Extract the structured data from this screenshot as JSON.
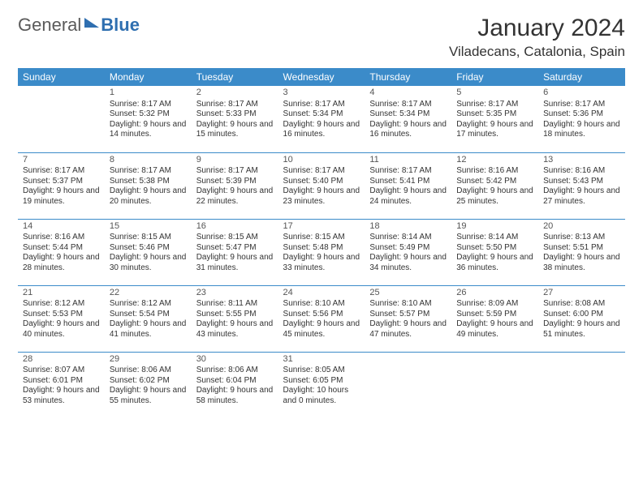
{
  "logo": {
    "general": "General",
    "blue": "Blue"
  },
  "title": "January 2024",
  "location": "Viladecans, Catalonia, Spain",
  "colors": {
    "header_bg": "#3b8bc9",
    "header_text": "#ffffff",
    "rule": "#3b8bc9",
    "logo_blue": "#2f6fb0",
    "text": "#333333"
  },
  "day_names": [
    "Sunday",
    "Monday",
    "Tuesday",
    "Wednesday",
    "Thursday",
    "Friday",
    "Saturday"
  ],
  "weeks": [
    [
      null,
      {
        "n": "1",
        "sr": "Sunrise: 8:17 AM",
        "ss": "Sunset: 5:32 PM",
        "dl": "Daylight: 9 hours and 14 minutes."
      },
      {
        "n": "2",
        "sr": "Sunrise: 8:17 AM",
        "ss": "Sunset: 5:33 PM",
        "dl": "Daylight: 9 hours and 15 minutes."
      },
      {
        "n": "3",
        "sr": "Sunrise: 8:17 AM",
        "ss": "Sunset: 5:34 PM",
        "dl": "Daylight: 9 hours and 16 minutes."
      },
      {
        "n": "4",
        "sr": "Sunrise: 8:17 AM",
        "ss": "Sunset: 5:34 PM",
        "dl": "Daylight: 9 hours and 16 minutes."
      },
      {
        "n": "5",
        "sr": "Sunrise: 8:17 AM",
        "ss": "Sunset: 5:35 PM",
        "dl": "Daylight: 9 hours and 17 minutes."
      },
      {
        "n": "6",
        "sr": "Sunrise: 8:17 AM",
        "ss": "Sunset: 5:36 PM",
        "dl": "Daylight: 9 hours and 18 minutes."
      }
    ],
    [
      {
        "n": "7",
        "sr": "Sunrise: 8:17 AM",
        "ss": "Sunset: 5:37 PM",
        "dl": "Daylight: 9 hours and 19 minutes."
      },
      {
        "n": "8",
        "sr": "Sunrise: 8:17 AM",
        "ss": "Sunset: 5:38 PM",
        "dl": "Daylight: 9 hours and 20 minutes."
      },
      {
        "n": "9",
        "sr": "Sunrise: 8:17 AM",
        "ss": "Sunset: 5:39 PM",
        "dl": "Daylight: 9 hours and 22 minutes."
      },
      {
        "n": "10",
        "sr": "Sunrise: 8:17 AM",
        "ss": "Sunset: 5:40 PM",
        "dl": "Daylight: 9 hours and 23 minutes."
      },
      {
        "n": "11",
        "sr": "Sunrise: 8:17 AM",
        "ss": "Sunset: 5:41 PM",
        "dl": "Daylight: 9 hours and 24 minutes."
      },
      {
        "n": "12",
        "sr": "Sunrise: 8:16 AM",
        "ss": "Sunset: 5:42 PM",
        "dl": "Daylight: 9 hours and 25 minutes."
      },
      {
        "n": "13",
        "sr": "Sunrise: 8:16 AM",
        "ss": "Sunset: 5:43 PM",
        "dl": "Daylight: 9 hours and 27 minutes."
      }
    ],
    [
      {
        "n": "14",
        "sr": "Sunrise: 8:16 AM",
        "ss": "Sunset: 5:44 PM",
        "dl": "Daylight: 9 hours and 28 minutes."
      },
      {
        "n": "15",
        "sr": "Sunrise: 8:15 AM",
        "ss": "Sunset: 5:46 PM",
        "dl": "Daylight: 9 hours and 30 minutes."
      },
      {
        "n": "16",
        "sr": "Sunrise: 8:15 AM",
        "ss": "Sunset: 5:47 PM",
        "dl": "Daylight: 9 hours and 31 minutes."
      },
      {
        "n": "17",
        "sr": "Sunrise: 8:15 AM",
        "ss": "Sunset: 5:48 PM",
        "dl": "Daylight: 9 hours and 33 minutes."
      },
      {
        "n": "18",
        "sr": "Sunrise: 8:14 AM",
        "ss": "Sunset: 5:49 PM",
        "dl": "Daylight: 9 hours and 34 minutes."
      },
      {
        "n": "19",
        "sr": "Sunrise: 8:14 AM",
        "ss": "Sunset: 5:50 PM",
        "dl": "Daylight: 9 hours and 36 minutes."
      },
      {
        "n": "20",
        "sr": "Sunrise: 8:13 AM",
        "ss": "Sunset: 5:51 PM",
        "dl": "Daylight: 9 hours and 38 minutes."
      }
    ],
    [
      {
        "n": "21",
        "sr": "Sunrise: 8:12 AM",
        "ss": "Sunset: 5:53 PM",
        "dl": "Daylight: 9 hours and 40 minutes."
      },
      {
        "n": "22",
        "sr": "Sunrise: 8:12 AM",
        "ss": "Sunset: 5:54 PM",
        "dl": "Daylight: 9 hours and 41 minutes."
      },
      {
        "n": "23",
        "sr": "Sunrise: 8:11 AM",
        "ss": "Sunset: 5:55 PM",
        "dl": "Daylight: 9 hours and 43 minutes."
      },
      {
        "n": "24",
        "sr": "Sunrise: 8:10 AM",
        "ss": "Sunset: 5:56 PM",
        "dl": "Daylight: 9 hours and 45 minutes."
      },
      {
        "n": "25",
        "sr": "Sunrise: 8:10 AM",
        "ss": "Sunset: 5:57 PM",
        "dl": "Daylight: 9 hours and 47 minutes."
      },
      {
        "n": "26",
        "sr": "Sunrise: 8:09 AM",
        "ss": "Sunset: 5:59 PM",
        "dl": "Daylight: 9 hours and 49 minutes."
      },
      {
        "n": "27",
        "sr": "Sunrise: 8:08 AM",
        "ss": "Sunset: 6:00 PM",
        "dl": "Daylight: 9 hours and 51 minutes."
      }
    ],
    [
      {
        "n": "28",
        "sr": "Sunrise: 8:07 AM",
        "ss": "Sunset: 6:01 PM",
        "dl": "Daylight: 9 hours and 53 minutes."
      },
      {
        "n": "29",
        "sr": "Sunrise: 8:06 AM",
        "ss": "Sunset: 6:02 PM",
        "dl": "Daylight: 9 hours and 55 minutes."
      },
      {
        "n": "30",
        "sr": "Sunrise: 8:06 AM",
        "ss": "Sunset: 6:04 PM",
        "dl": "Daylight: 9 hours and 58 minutes."
      },
      {
        "n": "31",
        "sr": "Sunrise: 8:05 AM",
        "ss": "Sunset: 6:05 PM",
        "dl": "Daylight: 10 hours and 0 minutes."
      },
      null,
      null,
      null
    ]
  ]
}
